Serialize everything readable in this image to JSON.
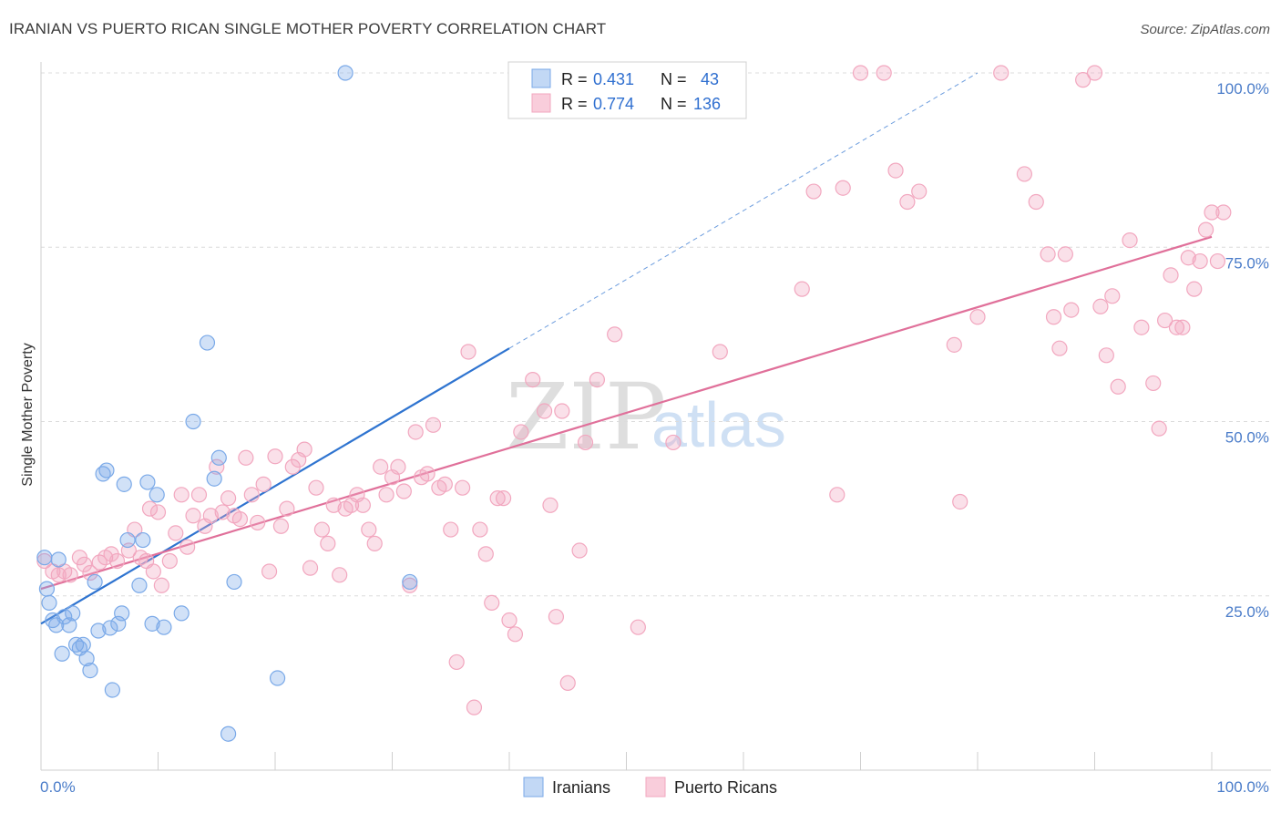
{
  "title": "IRANIAN VS PUERTO RICAN SINGLE MOTHER POVERTY CORRELATION CHART",
  "source": "Source: ZipAtlas.com",
  "watermark": {
    "zip": "ZIP",
    "atlas": "atlas"
  },
  "legend": {
    "rows": [
      {
        "r_label": "R =",
        "r_value": "0.431",
        "n_label": "N =",
        "n_value": "43"
      },
      {
        "r_label": "R =",
        "r_value": "0.774",
        "n_label": "N =",
        "n_value": "136"
      }
    ]
  },
  "chart_data": {
    "type": "scatter",
    "title": "IRANIAN VS PUERTO RICAN SINGLE MOTHER POVERTY CORRELATION CHART",
    "ylabel": "Single Mother Poverty",
    "xlabel": "",
    "xlim": [
      0,
      100
    ],
    "ylim": [
      0,
      100
    ],
    "x_tick_labels": [
      "0.0%",
      "100.0%"
    ],
    "y_tick_labels": [
      "25.0%",
      "50.0%",
      "75.0%",
      "100.0%"
    ],
    "y_ticks": [
      25,
      50,
      75,
      100
    ],
    "grid": "horizontal dashed",
    "legend_position": "top-center",
    "series": [
      {
        "name": "Iranians",
        "color": "#7aa9e8",
        "line_color": "#2f74d0",
        "r": 0.431,
        "n": 43,
        "trend": {
          "x0": 0,
          "y0": 21,
          "x1": 40,
          "y1": 60.5,
          "dashed_to": {
            "x": 80,
            "y": 100
          }
        },
        "points": [
          [
            0.3,
            30.5
          ],
          [
            0.5,
            26
          ],
          [
            0.7,
            24
          ],
          [
            1,
            21.5
          ],
          [
            1.3,
            20.8
          ],
          [
            1.5,
            30.2
          ],
          [
            1.8,
            16.7
          ],
          [
            2,
            22
          ],
          [
            2.4,
            20.8
          ],
          [
            2.7,
            22.5
          ],
          [
            3,
            18
          ],
          [
            3.3,
            17.5
          ],
          [
            3.6,
            18
          ],
          [
            3.9,
            16
          ],
          [
            4.2,
            14.3
          ],
          [
            4.6,
            27
          ],
          [
            4.9,
            20
          ],
          [
            5.3,
            42.5
          ],
          [
            5.6,
            43
          ],
          [
            5.9,
            20.4
          ],
          [
            6.1,
            11.5
          ],
          [
            6.6,
            21
          ],
          [
            6.9,
            22.5
          ],
          [
            7.1,
            41
          ],
          [
            7.4,
            33
          ],
          [
            8.4,
            26.5
          ],
          [
            8.7,
            33
          ],
          [
            9.1,
            41.3
          ],
          [
            9.5,
            21
          ],
          [
            9.9,
            39.5
          ],
          [
            10.5,
            20.5
          ],
          [
            12,
            22.5
          ],
          [
            13,
            50
          ],
          [
            14.2,
            61.3
          ],
          [
            14.8,
            41.8
          ],
          [
            15.2,
            44.8
          ],
          [
            16,
            5.2
          ],
          [
            16.5,
            27
          ],
          [
            20.2,
            13.2
          ],
          [
            26,
            100
          ],
          [
            31.5,
            27
          ]
        ]
      },
      {
        "name": "Puerto Ricans",
        "color": "#f2a7bf",
        "line_color": "#e0709a",
        "r": 0.774,
        "n": 136,
        "trend": {
          "x0": 0,
          "y0": 26,
          "x1": 100,
          "y1": 76.5
        },
        "points": [
          [
            0.3,
            30
          ],
          [
            1,
            28.5
          ],
          [
            1.5,
            28
          ],
          [
            2,
            28.5
          ],
          [
            2.5,
            28
          ],
          [
            3.3,
            30.5
          ],
          [
            3.7,
            29.5
          ],
          [
            4.2,
            28.3
          ],
          [
            5,
            29.8
          ],
          [
            5.5,
            30.5
          ],
          [
            6,
            31
          ],
          [
            6.5,
            30
          ],
          [
            7.5,
            31.5
          ],
          [
            8,
            34.5
          ],
          [
            8.5,
            30.5
          ],
          [
            9,
            30
          ],
          [
            9.3,
            37.5
          ],
          [
            9.6,
            28.5
          ],
          [
            10,
            37
          ],
          [
            10.3,
            26.5
          ],
          [
            11,
            30
          ],
          [
            11.5,
            34
          ],
          [
            12,
            39.5
          ],
          [
            12.5,
            32
          ],
          [
            13,
            36.5
          ],
          [
            13.5,
            39.5
          ],
          [
            14,
            35
          ],
          [
            14.5,
            36.5
          ],
          [
            15,
            43.5
          ],
          [
            15.5,
            37
          ],
          [
            16,
            39
          ],
          [
            16.5,
            36.5
          ],
          [
            17,
            36
          ],
          [
            17.5,
            44.8
          ],
          [
            18,
            39.5
          ],
          [
            18.5,
            35.5
          ],
          [
            19,
            41
          ],
          [
            19.5,
            28.5
          ],
          [
            20,
            45
          ],
          [
            20.5,
            35
          ],
          [
            21,
            37.5
          ],
          [
            21.5,
            43.5
          ],
          [
            22,
            44.5
          ],
          [
            22.5,
            46
          ],
          [
            23,
            29
          ],
          [
            23.5,
            40.5
          ],
          [
            24,
            34.5
          ],
          [
            24.5,
            32.5
          ],
          [
            25,
            38
          ],
          [
            25.5,
            28
          ],
          [
            26,
            37.5
          ],
          [
            26.5,
            38
          ],
          [
            27,
            39.5
          ],
          [
            27.5,
            38
          ],
          [
            28,
            34.5
          ],
          [
            28.5,
            32.5
          ],
          [
            29,
            43.5
          ],
          [
            29.5,
            39.5
          ],
          [
            30,
            42
          ],
          [
            30.5,
            43.5
          ],
          [
            31,
            40
          ],
          [
            31.5,
            26.5
          ],
          [
            32,
            48.5
          ],
          [
            32.5,
            42
          ],
          [
            33,
            42.5
          ],
          [
            33.5,
            49.5
          ],
          [
            34,
            40.5
          ],
          [
            34.5,
            41
          ],
          [
            35,
            34.5
          ],
          [
            35.5,
            15.5
          ],
          [
            36,
            40.5
          ],
          [
            36.5,
            60
          ],
          [
            37,
            9
          ],
          [
            37.5,
            34.5
          ],
          [
            38,
            31
          ],
          [
            38.5,
            24
          ],
          [
            39,
            39
          ],
          [
            39.5,
            39
          ],
          [
            40,
            21.5
          ],
          [
            40.5,
            19.5
          ],
          [
            41,
            48.5
          ],
          [
            42,
            56
          ],
          [
            43,
            51.5
          ],
          [
            43.5,
            38
          ],
          [
            44,
            22
          ],
          [
            44.5,
            51.5
          ],
          [
            45,
            12.5
          ],
          [
            46,
            31.5
          ],
          [
            46.5,
            47
          ],
          [
            47.5,
            56
          ],
          [
            49,
            62.5
          ],
          [
            51,
            20.5
          ],
          [
            54,
            47
          ],
          [
            58,
            60
          ],
          [
            65,
            69
          ],
          [
            66,
            83
          ],
          [
            68,
            39.5
          ],
          [
            68.5,
            83.5
          ],
          [
            70,
            100
          ],
          [
            72,
            100
          ],
          [
            73,
            86
          ],
          [
            74,
            81.5
          ],
          [
            75,
            83
          ],
          [
            78,
            61
          ],
          [
            78.5,
            38.5
          ],
          [
            80,
            65
          ],
          [
            82,
            100
          ],
          [
            84,
            85.5
          ],
          [
            85,
            81.5
          ],
          [
            86,
            74
          ],
          [
            86.5,
            65
          ],
          [
            87,
            60.5
          ],
          [
            87.5,
            74
          ],
          [
            88,
            66
          ],
          [
            89,
            99
          ],
          [
            90,
            100
          ],
          [
            90.5,
            66.5
          ],
          [
            91,
            59.5
          ],
          [
            91.5,
            68
          ],
          [
            92,
            55
          ],
          [
            93,
            76
          ],
          [
            94,
            63.5
          ],
          [
            95,
            55.5
          ],
          [
            95.5,
            49
          ],
          [
            96,
            64.5
          ],
          [
            96.5,
            71
          ],
          [
            97,
            63.5
          ],
          [
            97.5,
            63.5
          ],
          [
            98,
            73.5
          ],
          [
            98.5,
            69
          ],
          [
            99,
            73
          ],
          [
            99.5,
            77.5
          ],
          [
            100,
            80
          ],
          [
            100.5,
            73
          ],
          [
            101,
            80
          ]
        ]
      }
    ]
  },
  "bottom_legend": [
    "Iranians",
    "Puerto Ricans"
  ]
}
